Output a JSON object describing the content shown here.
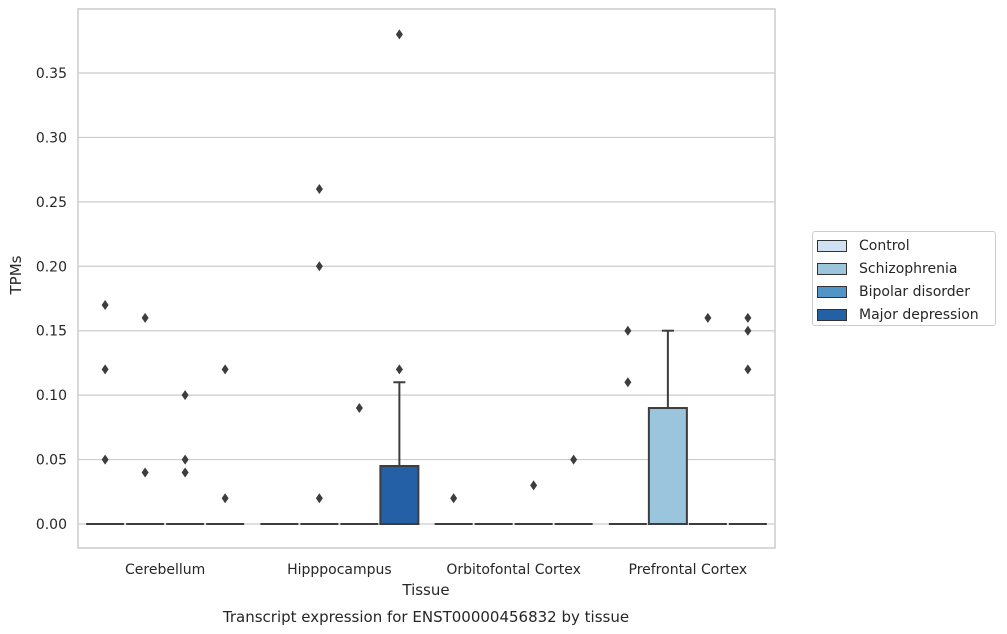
{
  "chart_data": {
    "type": "box",
    "title": "Transcript expression for ENST00000456832 by tissue",
    "xlabel": "Tissue",
    "ylabel": "TPMs",
    "ylim": [
      -0.018,
      0.398
    ],
    "yticks": [
      "0.00",
      "0.05",
      "0.10",
      "0.15",
      "0.20",
      "0.25",
      "0.30",
      "0.35"
    ],
    "grid": true,
    "legend_position": "right",
    "categories": [
      "Cerebellum",
      "Hipppocampus",
      "Orbitofontal Cortex",
      "Prefrontal Cortex"
    ],
    "series": [
      {
        "name": "Control",
        "color": "#d0e1f1"
      },
      {
        "name": "Schizophrenia",
        "color": "#9ac5dc"
      },
      {
        "name": "Bipolar disorder",
        "color": "#5195c6"
      },
      {
        "name": "Major depression",
        "color": "#2460a5"
      }
    ],
    "boxes": [
      {
        "category": 0,
        "series": 0,
        "q1": 0,
        "median": 0,
        "q3": 0,
        "whisker_low": 0,
        "whisker_high": 0,
        "outliers": [
          0.17,
          0.12,
          0.05
        ]
      },
      {
        "category": 0,
        "series": 1,
        "q1": 0,
        "median": 0,
        "q3": 0,
        "whisker_low": 0,
        "whisker_high": 0,
        "outliers": [
          0.16,
          0.04
        ]
      },
      {
        "category": 0,
        "series": 2,
        "q1": 0,
        "median": 0,
        "q3": 0,
        "whisker_low": 0,
        "whisker_high": 0,
        "outliers": [
          0.1,
          0.05,
          0.04
        ]
      },
      {
        "category": 0,
        "series": 3,
        "q1": 0,
        "median": 0,
        "q3": 0,
        "whisker_low": 0,
        "whisker_high": 0,
        "outliers": [
          0.12,
          0.02
        ]
      },
      {
        "category": 1,
        "series": 0,
        "q1": 0,
        "median": 0,
        "q3": 0,
        "whisker_low": 0,
        "whisker_high": 0,
        "outliers": []
      },
      {
        "category": 1,
        "series": 1,
        "q1": 0,
        "median": 0,
        "q3": 0,
        "whisker_low": 0,
        "whisker_high": 0,
        "outliers": [
          0.26,
          0.2,
          0.02
        ]
      },
      {
        "category": 1,
        "series": 2,
        "q1": 0,
        "median": 0,
        "q3": 0,
        "whisker_low": 0,
        "whisker_high": 0,
        "outliers": [
          0.09
        ]
      },
      {
        "category": 1,
        "series": 3,
        "q1": 0,
        "median": 0,
        "q3": 0.045,
        "whisker_low": 0,
        "whisker_high": 0.11,
        "outliers": [
          0.38,
          0.12
        ]
      },
      {
        "category": 2,
        "series": 0,
        "q1": 0,
        "median": 0,
        "q3": 0,
        "whisker_low": 0,
        "whisker_high": 0,
        "outliers": [
          0.02
        ]
      },
      {
        "category": 2,
        "series": 1,
        "q1": 0,
        "median": 0,
        "q3": 0,
        "whisker_low": 0,
        "whisker_high": 0,
        "outliers": []
      },
      {
        "category": 2,
        "series": 2,
        "q1": 0,
        "median": 0,
        "q3": 0,
        "whisker_low": 0,
        "whisker_high": 0,
        "outliers": [
          0.03
        ]
      },
      {
        "category": 2,
        "series": 3,
        "q1": 0,
        "median": 0,
        "q3": 0,
        "whisker_low": 0,
        "whisker_high": 0,
        "outliers": [
          0.05
        ]
      },
      {
        "category": 3,
        "series": 0,
        "q1": 0,
        "median": 0,
        "q3": 0,
        "whisker_low": 0,
        "whisker_high": 0,
        "outliers": [
          0.15,
          0.11
        ]
      },
      {
        "category": 3,
        "series": 1,
        "q1": 0,
        "median": 0,
        "q3": 0.09,
        "whisker_low": 0,
        "whisker_high": 0.15,
        "outliers": []
      },
      {
        "category": 3,
        "series": 2,
        "q1": 0,
        "median": 0,
        "q3": 0,
        "whisker_low": 0,
        "whisker_high": 0,
        "outliers": [
          0.16
        ]
      },
      {
        "category": 3,
        "series": 3,
        "q1": 0,
        "median": 0,
        "q3": 0,
        "whisker_low": 0,
        "whisker_high": 0,
        "outliers": [
          0.16,
          0.15,
          0.12
        ]
      }
    ]
  }
}
